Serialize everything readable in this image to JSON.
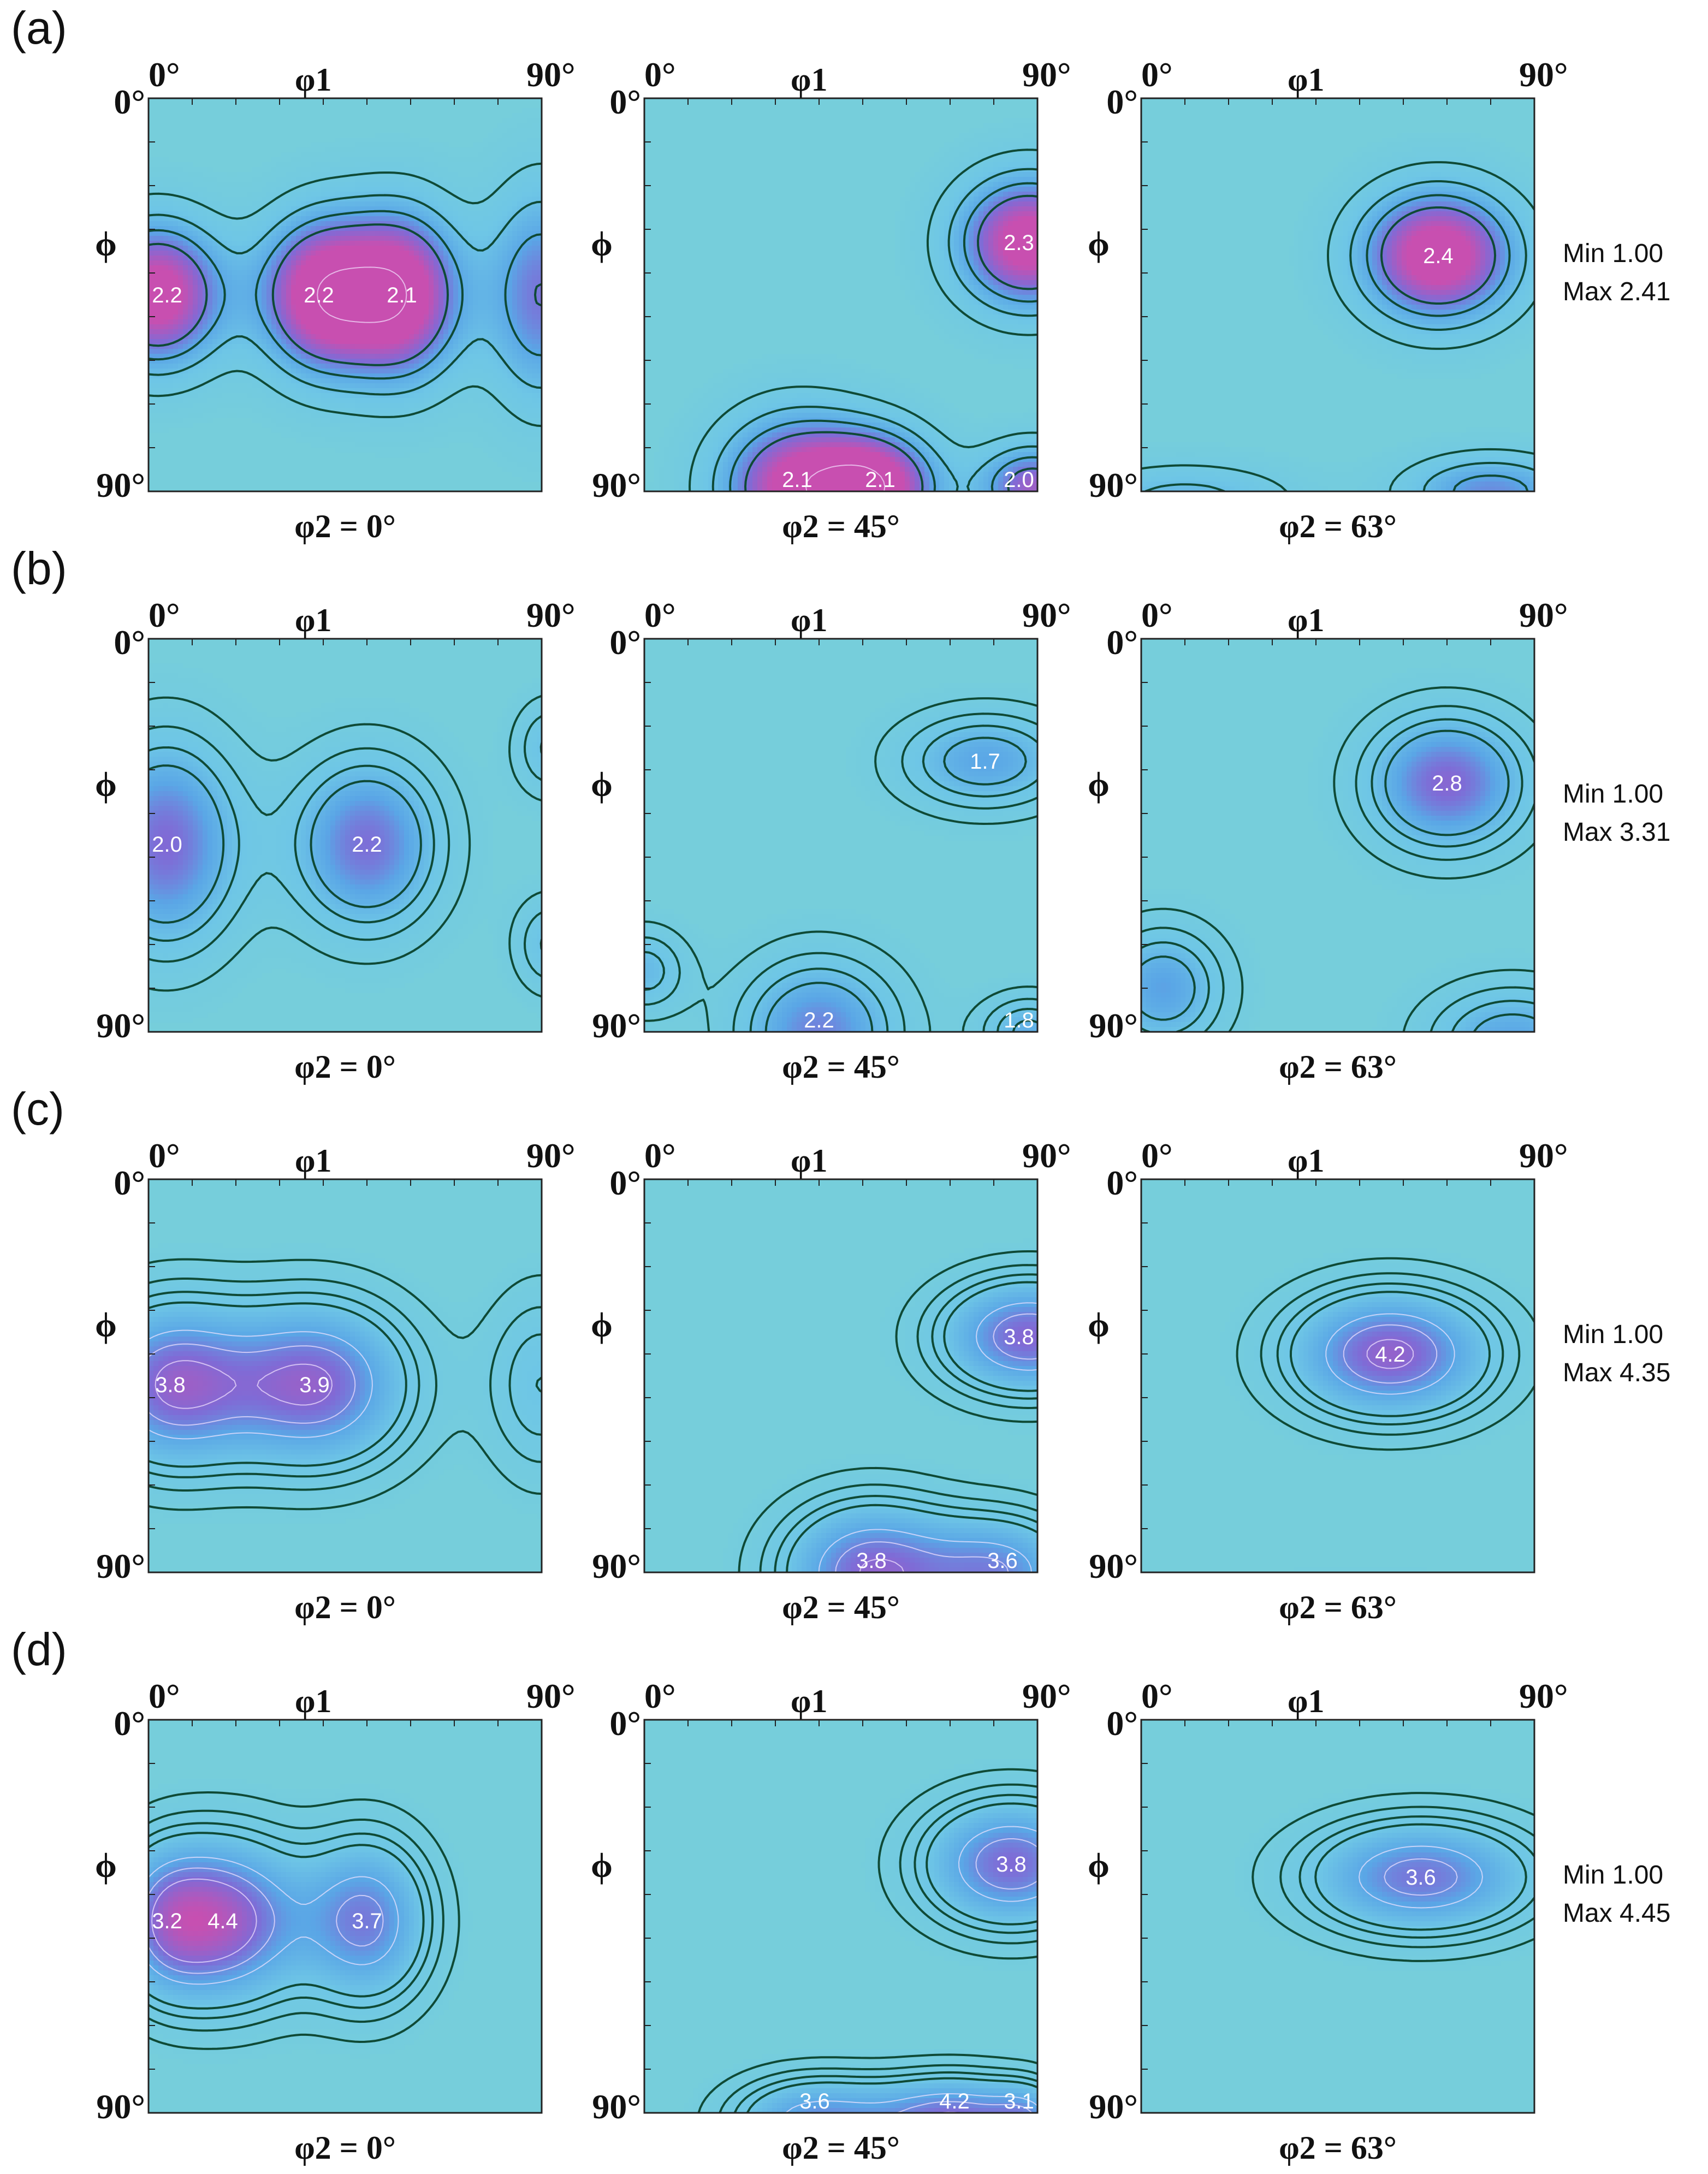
{
  "chart_data": {
    "type": "heatmap",
    "description_units": "ODF intensity contours; phi1 horizontal (0°–90°), Phi vertical (0° top – 90° bottom)",
    "colors": {
      "background": "#76cedb",
      "contour_line": "#0f4a36",
      "mid": "#5aa6e6",
      "high": "#7f6bd6",
      "peak": "#c84fb0"
    },
    "axis": {
      "x_label": "φ1",
      "y_label": "ϕ",
      "x_start": "0°",
      "x_end": "90°",
      "y_start": "0°",
      "y_end": "90°",
      "xlim": [
        0,
        90
      ],
      "ylim": [
        0,
        90
      ]
    },
    "rows": [
      {
        "label": "(a)",
        "min_text": "Min 1.00",
        "max_text": "Max 2.41",
        "max": 2.41,
        "sections": [
          {
            "caption": "φ2 = 0°",
            "peaks": [
              {
                "phi1": 2,
                "Phi": 45,
                "sx": 11,
                "sy": 12,
                "h": 1.6,
                "label": "2.2"
              },
              {
                "phi1": 39,
                "Phi": 45,
                "sx": 10,
                "sy": 13,
                "h": 1.55,
                "label": "2.2"
              },
              {
                "phi1": 58,
                "Phi": 45,
                "sx": 10,
                "sy": 14,
                "h": 1.6,
                "label": "2.1"
              },
              {
                "phi1": 90,
                "Phi": 45,
                "sx": 9,
                "sy": 18,
                "h": 1.0,
                "label": ""
              }
            ]
          },
          {
            "caption": "φ2 = 45°",
            "peaks": [
              {
                "phi1": 88,
                "Phi": 33,
                "sx": 12,
                "sy": 11,
                "h": 1.6,
                "label": "2.3"
              },
              {
                "phi1": 35,
                "Phi": 89,
                "sx": 13,
                "sy": 12,
                "h": 1.5,
                "label": "2.1"
              },
              {
                "phi1": 54,
                "Phi": 89,
                "sx": 10,
                "sy": 9,
                "h": 1.35,
                "label": "2.1"
              },
              {
                "phi1": 89,
                "Phi": 89,
                "sx": 9,
                "sy": 7,
                "h": 1.2,
                "label": "2.0"
              }
            ]
          },
          {
            "caption": "φ2 = 63°",
            "peaks": [
              {
                "phi1": 68,
                "Phi": 36,
                "sx": 13,
                "sy": 11,
                "h": 1.65,
                "label": "2.4"
              },
              {
                "phi1": 80,
                "Phi": 90,
                "sx": 14,
                "sy": 6,
                "h": 0.9,
                "label": ""
              },
              {
                "phi1": 10,
                "Phi": 92,
                "sx": 18,
                "sy": 6,
                "h": 0.6,
                "label": ""
              }
            ]
          }
        ]
      },
      {
        "label": "(b)",
        "min_text": "Min 1.00",
        "max_text": "Max 3.31",
        "max": 3.31,
        "sections": [
          {
            "caption": "φ2 = 0°",
            "peaks": [
              {
                "phi1": 4,
                "Phi": 47,
                "sx": 12,
                "sy": 17,
                "h": 1.75,
                "label": "2.0"
              },
              {
                "phi1": 50,
                "Phi": 47,
                "sx": 12,
                "sy": 14,
                "h": 1.7,
                "label": "2.2"
              },
              {
                "phi1": 92,
                "Phi": 25,
                "sx": 6,
                "sy": 8,
                "h": 0.8,
                "label": ""
              },
              {
                "phi1": 92,
                "Phi": 70,
                "sx": 6,
                "sy": 8,
                "h": 0.8,
                "label": ""
              }
            ]
          },
          {
            "caption": "φ2 = 45°",
            "peaks": [
              {
                "phi1": 78,
                "Phi": 28,
                "sx": 14,
                "sy": 8,
                "h": 1.25,
                "label": "1.7"
              },
              {
                "phi1": 40,
                "Phi": 90,
                "sx": 13,
                "sy": 12,
                "h": 1.55,
                "label": "2.2"
              },
              {
                "phi1": 88,
                "Phi": 90,
                "sx": 8,
                "sy": 6,
                "h": 1.1,
                "label": "1.8"
              },
              {
                "phi1": 0,
                "Phi": 76,
                "sx": 7,
                "sy": 7,
                "h": 0.9,
                "label": ""
              }
            ]
          },
          {
            "caption": "φ2 = 63°",
            "peaks": [
              {
                "phi1": 70,
                "Phi": 33,
                "sx": 13,
                "sy": 11,
                "h": 1.8,
                "label": "2.8"
              },
              {
                "phi1": 5,
                "Phi": 80,
                "sx": 10,
                "sy": 10,
                "h": 1.3,
                "label": ""
              },
              {
                "phi1": 85,
                "Phi": 92,
                "sx": 14,
                "sy": 9,
                "h": 1.25,
                "label": ""
              }
            ]
          }
        ]
      },
      {
        "label": "(c)",
        "min_text": "Min 1.00",
        "max_text": "Max 4.35",
        "max": 4.35,
        "sections": [
          {
            "caption": "φ2 = 0°",
            "peaks": [
              {
                "phi1": 5,
                "Phi": 47,
                "sx": 13,
                "sy": 13,
                "h": 2.55,
                "label": "3.8"
              },
              {
                "phi1": 38,
                "Phi": 47,
                "sx": 15,
                "sy": 13,
                "h": 2.65,
                "label": "3.9"
              },
              {
                "phi1": 90,
                "Phi": 47,
                "sx": 9,
                "sy": 15,
                "h": 1.0,
                "label": ""
              }
            ]
          },
          {
            "caption": "φ2 = 45°",
            "peaks": [
              {
                "phi1": 88,
                "Phi": 36,
                "sx": 14,
                "sy": 9,
                "h": 2.6,
                "label": "3.8"
              },
              {
                "phi1": 52,
                "Phi": 90,
                "sx": 14,
                "sy": 11,
                "h": 2.6,
                "label": "3.8"
              },
              {
                "phi1": 82,
                "Phi": 90,
                "sx": 12,
                "sy": 9,
                "h": 2.0,
                "label": "3.6"
              }
            ]
          },
          {
            "caption": "φ2 = 63°",
            "peaks": [
              {
                "phi1": 57,
                "Phi": 40,
                "sx": 16,
                "sy": 10,
                "h": 2.75,
                "label": "4.2"
              },
              {
                "phi1": 50,
                "Phi": 95,
                "sx": 30,
                "sy": 4,
                "h": 0.4,
                "label": ""
              }
            ]
          }
        ]
      },
      {
        "label": "(d)",
        "min_text": "Min 1.00",
        "max_text": "Max 4.45",
        "max": 4.45,
        "sections": [
          {
            "caption": "φ2 = 0°",
            "peaks": [
              {
                "phi1": 17,
                "Phi": 46,
                "sx": 13,
                "sy": 13,
                "h": 2.95,
                "label": "4.4"
              },
              {
                "phi1": 3,
                "Phi": 46,
                "sx": 8,
                "sy": 12,
                "h": 1.3,
                "label": "3.2"
              },
              {
                "phi1": 50,
                "Phi": 46,
                "sx": 10,
                "sy": 13,
                "h": 2.3,
                "label": "3.7"
              }
            ]
          },
          {
            "caption": "φ2 = 45°",
            "peaks": [
              {
                "phi1": 84,
                "Phi": 33,
                "sx": 14,
                "sy": 10,
                "h": 2.6,
                "label": "3.8"
              },
              {
                "phi1": 39,
                "Phi": 92,
                "sx": 13,
                "sy": 7,
                "h": 2.1,
                "label": "3.6"
              },
              {
                "phi1": 71,
                "Phi": 92,
                "sx": 13,
                "sy": 7,
                "h": 2.6,
                "label": "4.2"
              },
              {
                "phi1": 88,
                "Phi": 92,
                "sx": 6,
                "sy": 6,
                "h": 1.3,
                "label": "3.1"
              }
            ]
          },
          {
            "caption": "φ2 = 63°",
            "peaks": [
              {
                "phi1": 64,
                "Phi": 36,
                "sx": 18,
                "sy": 9,
                "h": 2.45,
                "label": "3.6"
              },
              {
                "phi1": 50,
                "Phi": 96,
                "sx": 40,
                "sy": 4,
                "h": 0.45,
                "label": ""
              }
            ]
          }
        ]
      }
    ]
  }
}
